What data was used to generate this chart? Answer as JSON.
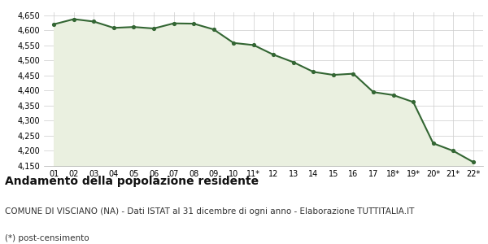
{
  "x_labels": [
    "01",
    "02",
    "03",
    "04",
    "05",
    "06",
    "07",
    "08",
    "09",
    "10",
    "11*",
    "12",
    "13",
    "14",
    "15",
    "16",
    "17",
    "18*",
    "19*",
    "20*",
    "21*",
    "22*"
  ],
  "values": [
    4620,
    4637,
    4629,
    4608,
    4611,
    4606,
    4623,
    4622,
    4603,
    4558,
    4551,
    4519,
    4494,
    4462,
    4452,
    4456,
    4395,
    4385,
    4362,
    4225,
    4200,
    4163
  ],
  "line_color": "#336633",
  "fill_color": "#eaf0e0",
  "marker_color": "#336633",
  "bg_color": "#ffffff",
  "grid_color": "#cccccc",
  "ylim": [
    4150,
    4660
  ],
  "yticks": [
    4150,
    4200,
    4250,
    4300,
    4350,
    4400,
    4450,
    4500,
    4550,
    4600,
    4650
  ],
  "title": "Andamento della popolazione residente",
  "subtitle": "COMUNE DI VISCIANO (NA) - Dati ISTAT al 31 dicembre di ogni anno - Elaborazione TUTTITALIA.IT",
  "footnote": "(*) post-censimento",
  "title_fontsize": 10,
  "subtitle_fontsize": 7.5,
  "footnote_fontsize": 7.5
}
